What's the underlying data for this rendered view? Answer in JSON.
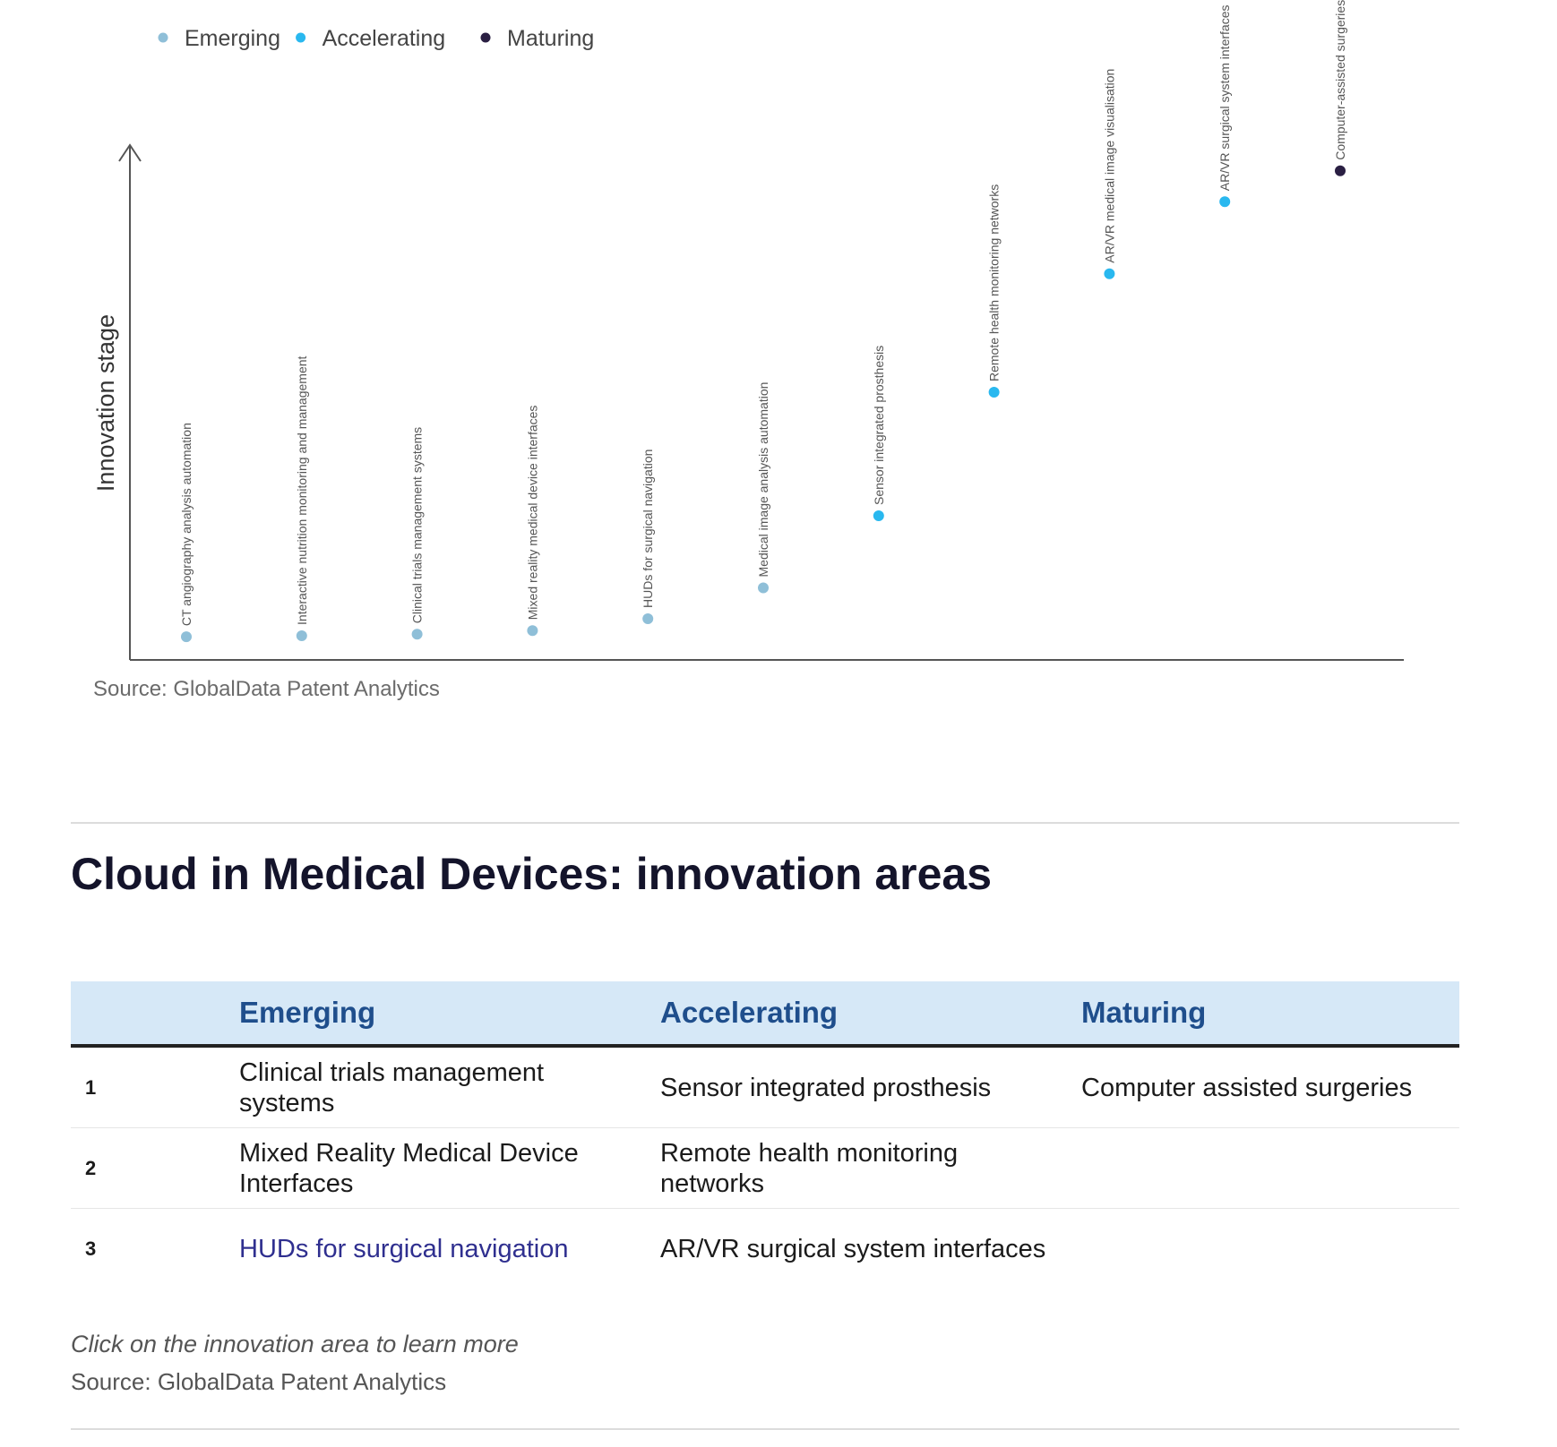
{
  "chart_data": {
    "type": "scatter",
    "legend": {
      "placement": "top-left",
      "entries": [
        {
          "name": "Emerging",
          "color": "#8fbfd8"
        },
        {
          "name": "Accelerating",
          "color": "#29b8ef"
        },
        {
          "name": "Maturing",
          "color": "#2a1f43"
        }
      ]
    },
    "ylabel": "Innovation stage",
    "xlabel": "",
    "ylim": [
      0,
      100
    ],
    "grid": false,
    "points": [
      {
        "label": "CT angiography analysis automation",
        "stage": "Emerging",
        "y": 4.5
      },
      {
        "label": "Interactive nutrition monitoring and management",
        "stage": "Emerging",
        "y": 4.7
      },
      {
        "label": "Clinical trials management systems",
        "stage": "Emerging",
        "y": 5
      },
      {
        "label": "Mixed reality medical device interfaces",
        "stage": "Emerging",
        "y": 5.7
      },
      {
        "label": "HUDs for surgical navigation",
        "stage": "Emerging",
        "y": 8
      },
      {
        "label": "Medical image analysis automation",
        "stage": "Emerging",
        "y": 14
      },
      {
        "label": "Sensor integrated prosthesis",
        "stage": "Accelerating",
        "y": 28
      },
      {
        "label": "Remote health monitoring networks",
        "stage": "Accelerating",
        "y": 52
      },
      {
        "label": "AR/VR medical image visualisation",
        "stage": "Accelerating",
        "y": 75
      },
      {
        "label": "AR/VR surgical system interfaces",
        "stage": "Accelerating",
        "y": 89
      },
      {
        "label": "Computer-assisted surgeries",
        "stage": "Maturing",
        "y": 95
      }
    ]
  },
  "chart_source": "Source: GlobalData Patent Analytics",
  "section_title": "Cloud in Medical Devices: innovation areas",
  "table": {
    "headers": [
      "",
      "Emerging",
      "Accelerating",
      "Maturing"
    ],
    "rows": [
      [
        "1",
        "Clinical trials management systems",
        "Sensor integrated prosthesis",
        "Computer assisted surgeries"
      ],
      [
        "2",
        "Mixed Reality Medical Device Interfaces",
        "Remote health monitoring networks",
        ""
      ],
      [
        "3",
        "HUDs for surgical navigation",
        "AR/VR surgical system interfaces",
        ""
      ]
    ]
  },
  "footnote": "Click on the innovation area to learn more",
  "table_source": "Source: GlobalData Patent Analytics"
}
